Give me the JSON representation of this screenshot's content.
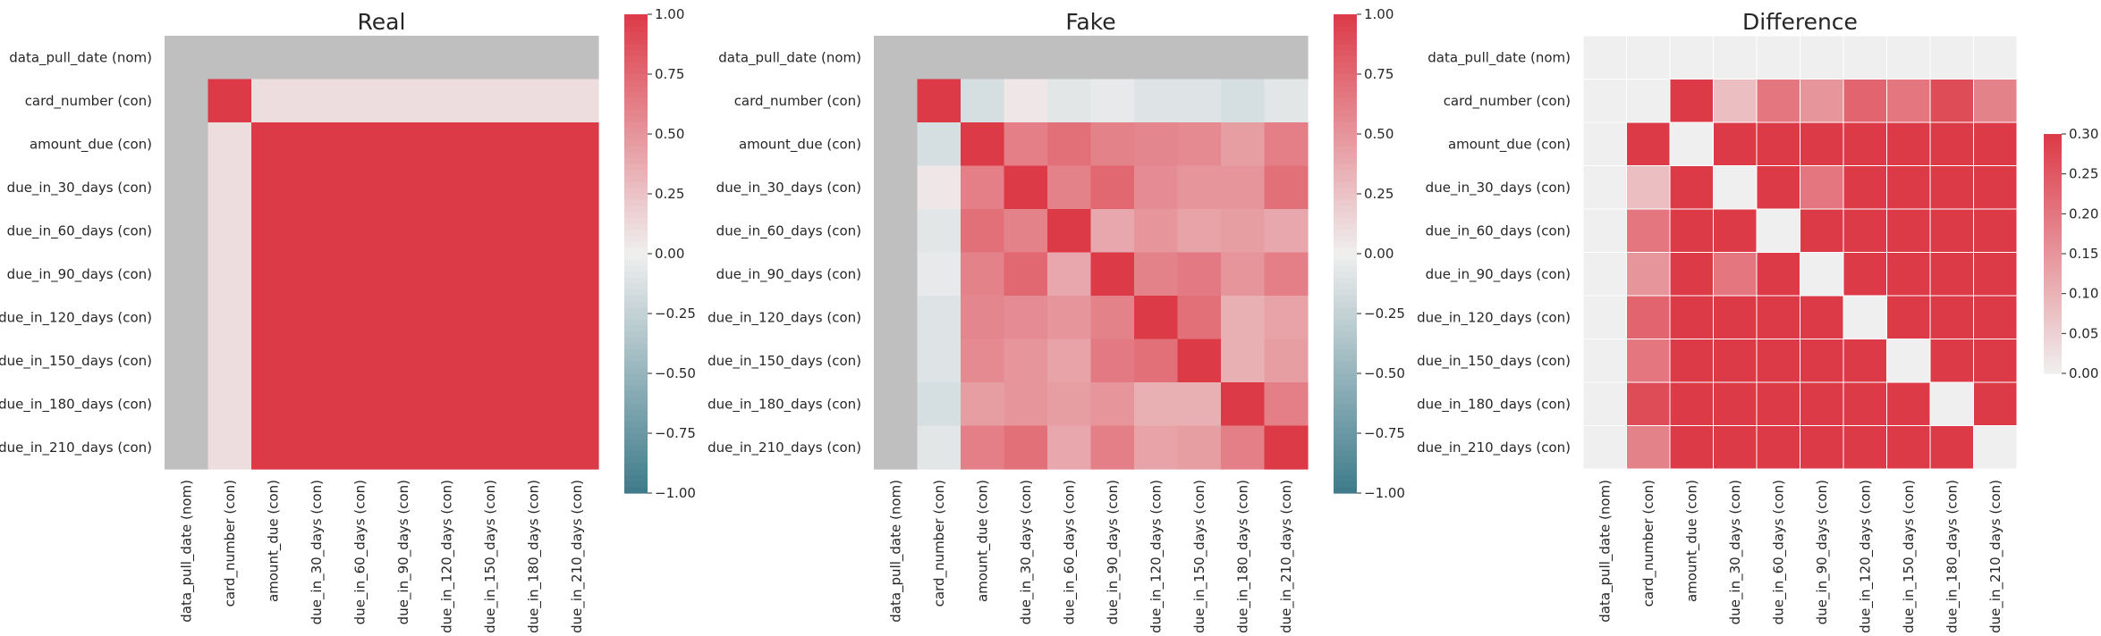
{
  "chart_data": [
    {
      "type": "heatmap",
      "title": "Real",
      "xlabel": "",
      "ylabel": "",
      "colorbar": {
        "min": -1.0,
        "max": 1.0,
        "ticks": [
          "1.00",
          "0.75",
          "0.50",
          "0.25",
          "0.00",
          "−0.25",
          "−0.50",
          "−0.75",
          "−1.00"
        ],
        "palette": "diverging-teal-red"
      },
      "labels": [
        "data_pull_date (nom)",
        "card_number (con)",
        "amount_due (con)",
        "due_in_30_days (con)",
        "due_in_60_days (con)",
        "due_in_90_days (con)",
        "due_in_120_days (con)",
        "due_in_150_days (con)",
        "due_in_180_days (con)",
        "due_in_210_days (con)"
      ],
      "matrix": [
        [
          null,
          null,
          null,
          null,
          null,
          null,
          null,
          null,
          null,
          null
        ],
        [
          null,
          1.0,
          0.1,
          0.1,
          0.1,
          0.1,
          0.1,
          0.1,
          0.1,
          0.1
        ],
        [
          null,
          0.1,
          1.0,
          1.0,
          1.0,
          1.0,
          1.0,
          1.0,
          1.0,
          1.0
        ],
        [
          null,
          0.1,
          1.0,
          1.0,
          1.0,
          1.0,
          1.0,
          1.0,
          1.0,
          1.0
        ],
        [
          null,
          0.1,
          1.0,
          1.0,
          1.0,
          1.0,
          1.0,
          1.0,
          1.0,
          1.0
        ],
        [
          null,
          0.1,
          1.0,
          1.0,
          1.0,
          1.0,
          1.0,
          1.0,
          1.0,
          1.0
        ],
        [
          null,
          0.1,
          1.0,
          1.0,
          1.0,
          1.0,
          1.0,
          1.0,
          1.0,
          1.0
        ],
        [
          null,
          0.1,
          1.0,
          1.0,
          1.0,
          1.0,
          1.0,
          1.0,
          1.0,
          1.0
        ],
        [
          null,
          0.1,
          1.0,
          1.0,
          1.0,
          1.0,
          1.0,
          1.0,
          1.0,
          1.0
        ],
        [
          null,
          0.1,
          1.0,
          1.0,
          1.0,
          1.0,
          1.0,
          1.0,
          1.0,
          1.0
        ]
      ]
    },
    {
      "type": "heatmap",
      "title": "Fake",
      "xlabel": "",
      "ylabel": "",
      "colorbar": {
        "min": -1.0,
        "max": 1.0,
        "ticks": [
          "1.00",
          "0.75",
          "0.50",
          "0.25",
          "0.00",
          "−0.25",
          "−0.50",
          "−0.75",
          "−1.00"
        ],
        "palette": "diverging-teal-red"
      },
      "labels": [
        "data_pull_date (nom)",
        "card_number (con)",
        "amount_due (con)",
        "due_in_30_days (con)",
        "due_in_60_days (con)",
        "due_in_90_days (con)",
        "due_in_120_days (con)",
        "due_in_150_days (con)",
        "due_in_180_days (con)",
        "due_in_210_days (con)"
      ],
      "matrix": [
        [
          null,
          null,
          null,
          null,
          null,
          null,
          null,
          null,
          null,
          null
        ],
        [
          null,
          1.0,
          -0.15,
          0.05,
          -0.08,
          -0.05,
          -0.1,
          -0.1,
          -0.15,
          -0.08
        ],
        [
          null,
          -0.15,
          1.0,
          0.62,
          0.7,
          0.6,
          0.58,
          0.56,
          0.45,
          0.62
        ],
        [
          null,
          0.05,
          0.62,
          1.0,
          0.6,
          0.75,
          0.55,
          0.5,
          0.5,
          0.7
        ],
        [
          null,
          -0.08,
          0.7,
          0.6,
          1.0,
          0.4,
          0.5,
          0.42,
          0.45,
          0.4
        ],
        [
          null,
          -0.05,
          0.6,
          0.75,
          0.4,
          1.0,
          0.6,
          0.65,
          0.5,
          0.62
        ],
        [
          null,
          -0.1,
          0.58,
          0.55,
          0.5,
          0.6,
          1.0,
          0.7,
          0.35,
          0.42
        ],
        [
          null,
          -0.1,
          0.56,
          0.5,
          0.42,
          0.65,
          0.7,
          1.0,
          0.35,
          0.45
        ],
        [
          null,
          -0.15,
          0.45,
          0.5,
          0.45,
          0.5,
          0.35,
          0.35,
          1.0,
          0.62
        ],
        [
          null,
          -0.08,
          0.62,
          0.7,
          0.4,
          0.62,
          0.42,
          0.45,
          0.62,
          1.0
        ]
      ]
    },
    {
      "type": "heatmap",
      "title": "Difference",
      "xlabel": "",
      "ylabel": "",
      "colorbar": {
        "min": 0.0,
        "max": 0.3,
        "ticks": [
          "0.30",
          "0.25",
          "0.20",
          "0.15",
          "0.10",
          "0.05",
          "0.00"
        ],
        "palette": "sequential-gray-red"
      },
      "labels": [
        "data_pull_date (nom)",
        "card_number (con)",
        "amount_due (con)",
        "due_in_30_days (con)",
        "due_in_60_days (con)",
        "due_in_90_days (con)",
        "due_in_120_days (con)",
        "due_in_150_days (con)",
        "due_in_180_days (con)",
        "due_in_210_days (con)"
      ],
      "matrix": [
        [
          0,
          0,
          0,
          0,
          0,
          0,
          0,
          0,
          0,
          0
        ],
        [
          0,
          0,
          0.3,
          0.08,
          0.2,
          0.15,
          0.23,
          0.2,
          0.27,
          0.18
        ],
        [
          0,
          0.3,
          0,
          0.3,
          0.3,
          0.3,
          0.3,
          0.3,
          0.3,
          0.3
        ],
        [
          0,
          0.08,
          0.3,
          0,
          0.3,
          0.2,
          0.3,
          0.3,
          0.3,
          0.3
        ],
        [
          0,
          0.2,
          0.3,
          0.3,
          0,
          0.3,
          0.3,
          0.3,
          0.3,
          0.3
        ],
        [
          0,
          0.15,
          0.3,
          0.2,
          0.3,
          0,
          0.3,
          0.3,
          0.3,
          0.3
        ],
        [
          0,
          0.23,
          0.3,
          0.3,
          0.3,
          0.3,
          0,
          0.3,
          0.3,
          0.3
        ],
        [
          0,
          0.2,
          0.3,
          0.3,
          0.3,
          0.3,
          0.3,
          0,
          0.3,
          0.3
        ],
        [
          0,
          0.27,
          0.3,
          0.3,
          0.3,
          0.3,
          0.3,
          0.3,
          0,
          0.3
        ],
        [
          0,
          0.18,
          0.3,
          0.3,
          0.3,
          0.3,
          0.3,
          0.3,
          0.3,
          0
        ]
      ]
    }
  ],
  "colors": {
    "nan": "#bfbfbf",
    "neutral": "#f0efef",
    "red": "#dc3a47",
    "teal": "#3d7b8a"
  }
}
